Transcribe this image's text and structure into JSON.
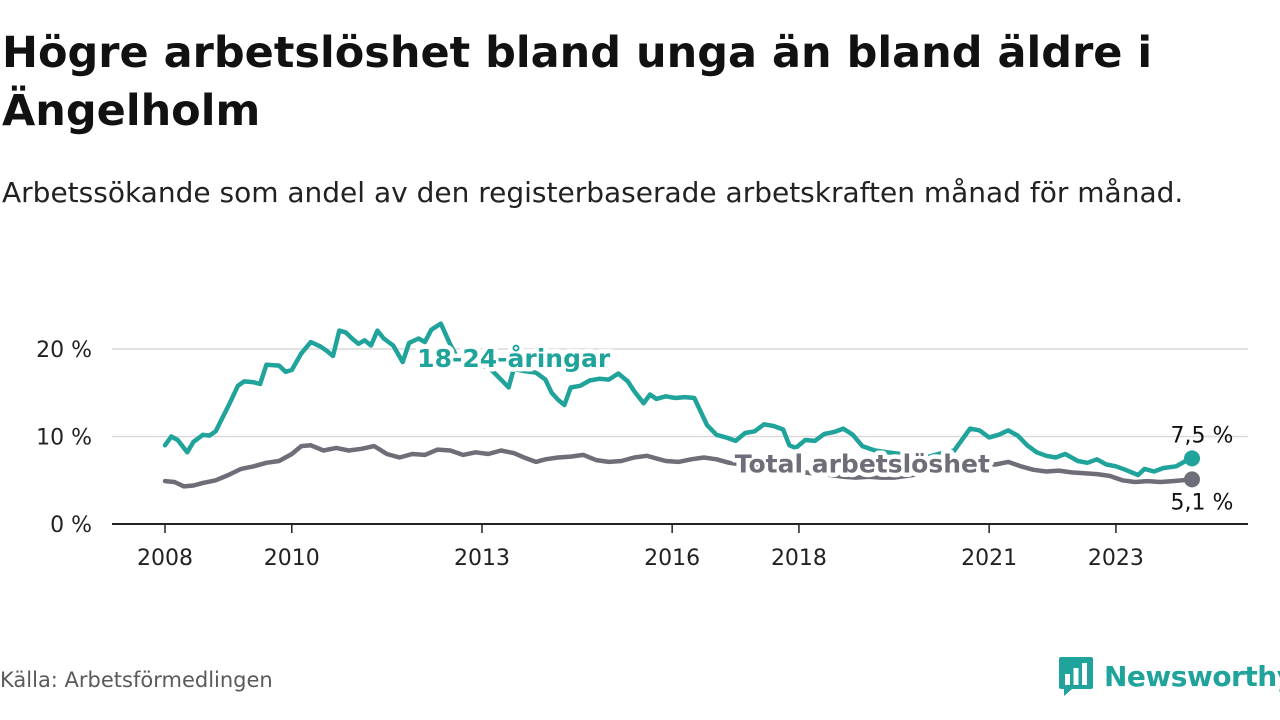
{
  "title": "Högre arbetslöshet bland unga än bland äldre i Ängelholm",
  "subtitle": "Arbetssökande som andel av den registerbaserade arbetskraften månad för månad.",
  "source": "Källa: Arbetsförmedlingen",
  "brand": {
    "name": "Newsworthy",
    "color": "#20a39b"
  },
  "chart_data": {
    "type": "line",
    "title": "Högre arbetslöshet bland unga än bland äldre i Ängelholm",
    "xlabel": "",
    "ylabel": "",
    "xlim": [
      2008.0,
      2024.5
    ],
    "ylim": [
      0,
      22
    ],
    "x_ticks": [
      2008,
      2010,
      2013,
      2016,
      2018,
      2021,
      2023
    ],
    "y_ticks": [
      {
        "value": 0,
        "label": "0 %"
      },
      {
        "value": 10,
        "label": "10 %"
      },
      {
        "value": 20,
        "label": "20 %"
      }
    ],
    "grid": true,
    "series": [
      {
        "name": "18-24-åringar",
        "color": "#20a39b",
        "end_label": "7,5 %",
        "points": [
          [
            2008.0,
            9.0
          ],
          [
            2008.1,
            10.0
          ],
          [
            2008.2,
            9.6
          ],
          [
            2008.35,
            8.2
          ],
          [
            2008.45,
            9.4
          ],
          [
            2008.6,
            10.2
          ],
          [
            2008.7,
            10.1
          ],
          [
            2008.8,
            10.6
          ],
          [
            2009.0,
            13.5
          ],
          [
            2009.15,
            15.8
          ],
          [
            2009.25,
            16.3
          ],
          [
            2009.4,
            16.2
          ],
          [
            2009.5,
            16.0
          ],
          [
            2009.6,
            18.2
          ],
          [
            2009.8,
            18.1
          ],
          [
            2009.9,
            17.4
          ],
          [
            2010.0,
            17.6
          ],
          [
            2010.15,
            19.5
          ],
          [
            2010.3,
            20.8
          ],
          [
            2010.45,
            20.3
          ],
          [
            2010.55,
            19.8
          ],
          [
            2010.65,
            19.2
          ],
          [
            2010.75,
            22.1
          ],
          [
            2010.85,
            21.9
          ],
          [
            2010.95,
            21.2
          ],
          [
            2011.05,
            20.6
          ],
          [
            2011.15,
            21.0
          ],
          [
            2011.25,
            20.4
          ],
          [
            2011.35,
            22.1
          ],
          [
            2011.45,
            21.2
          ],
          [
            2011.6,
            20.4
          ],
          [
            2011.75,
            18.5
          ],
          [
            2011.85,
            20.7
          ],
          [
            2012.0,
            21.2
          ],
          [
            2012.1,
            20.8
          ],
          [
            2012.2,
            22.2
          ],
          [
            2012.35,
            22.9
          ],
          [
            2012.5,
            20.5
          ],
          [
            2012.65,
            18.5
          ],
          [
            2012.8,
            17.8
          ],
          [
            2013.0,
            18.2
          ],
          [
            2013.15,
            17.6
          ],
          [
            2013.3,
            16.5
          ],
          [
            2013.42,
            15.6
          ],
          [
            2013.5,
            17.7
          ],
          [
            2013.65,
            17.5
          ],
          [
            2013.85,
            17.3
          ],
          [
            2014.0,
            16.5
          ],
          [
            2014.1,
            15.0
          ],
          [
            2014.2,
            14.2
          ],
          [
            2014.3,
            13.6
          ],
          [
            2014.4,
            15.6
          ],
          [
            2014.55,
            15.8
          ],
          [
            2014.7,
            16.4
          ],
          [
            2014.85,
            16.6
          ],
          [
            2015.0,
            16.5
          ],
          [
            2015.15,
            17.2
          ],
          [
            2015.3,
            16.3
          ],
          [
            2015.4,
            15.2
          ],
          [
            2015.55,
            13.8
          ],
          [
            2015.65,
            14.8
          ],
          [
            2015.75,
            14.3
          ],
          [
            2015.9,
            14.6
          ],
          [
            2016.05,
            14.4
          ],
          [
            2016.2,
            14.5
          ],
          [
            2016.35,
            14.4
          ],
          [
            2016.55,
            11.3
          ],
          [
            2016.7,
            10.2
          ],
          [
            2016.85,
            9.9
          ],
          [
            2017.0,
            9.5
          ],
          [
            2017.15,
            10.4
          ],
          [
            2017.3,
            10.6
          ],
          [
            2017.45,
            11.4
          ],
          [
            2017.6,
            11.2
          ],
          [
            2017.75,
            10.8
          ],
          [
            2017.85,
            9.0
          ],
          [
            2017.95,
            8.7
          ],
          [
            2018.1,
            9.6
          ],
          [
            2018.25,
            9.5
          ],
          [
            2018.4,
            10.3
          ],
          [
            2018.55,
            10.5
          ],
          [
            2018.7,
            10.9
          ],
          [
            2018.85,
            10.2
          ],
          [
            2019.0,
            8.9
          ],
          [
            2019.2,
            8.4
          ],
          [
            2019.4,
            8.2
          ],
          [
            2019.6,
            8.0
          ],
          [
            2019.8,
            7.8
          ],
          [
            2020.0,
            7.6
          ],
          [
            2020.2,
            8.0
          ],
          [
            2020.45,
            8.4
          ],
          [
            2020.7,
            10.9
          ],
          [
            2020.85,
            10.7
          ],
          [
            2021.0,
            9.9
          ],
          [
            2021.15,
            10.2
          ],
          [
            2021.3,
            10.7
          ],
          [
            2021.45,
            10.1
          ],
          [
            2021.6,
            9.0
          ],
          [
            2021.75,
            8.2
          ],
          [
            2021.9,
            7.8
          ],
          [
            2022.05,
            7.6
          ],
          [
            2022.2,
            8.0
          ],
          [
            2022.4,
            7.2
          ],
          [
            2022.55,
            7.0
          ],
          [
            2022.7,
            7.4
          ],
          [
            2022.85,
            6.8
          ],
          [
            2023.0,
            6.6
          ],
          [
            2023.15,
            6.2
          ],
          [
            2023.25,
            5.9
          ],
          [
            2023.35,
            5.6
          ],
          [
            2023.45,
            6.3
          ],
          [
            2023.6,
            6.0
          ],
          [
            2023.75,
            6.4
          ],
          [
            2023.95,
            6.6
          ],
          [
            2024.1,
            7.2
          ],
          [
            2024.2,
            7.5
          ]
        ]
      },
      {
        "name": "Total arbetslöshet",
        "color": "#6e6e78",
        "end_label": "5,1 %",
        "points": [
          [
            2008.0,
            4.9
          ],
          [
            2008.15,
            4.8
          ],
          [
            2008.3,
            4.3
          ],
          [
            2008.45,
            4.4
          ],
          [
            2008.6,
            4.7
          ],
          [
            2008.8,
            5.0
          ],
          [
            2009.0,
            5.6
          ],
          [
            2009.2,
            6.3
          ],
          [
            2009.4,
            6.6
          ],
          [
            2009.6,
            7.0
          ],
          [
            2009.8,
            7.2
          ],
          [
            2010.0,
            8.0
          ],
          [
            2010.15,
            8.9
          ],
          [
            2010.3,
            9.0
          ],
          [
            2010.5,
            8.4
          ],
          [
            2010.7,
            8.7
          ],
          [
            2010.9,
            8.4
          ],
          [
            2011.1,
            8.6
          ],
          [
            2011.3,
            8.9
          ],
          [
            2011.5,
            8.0
          ],
          [
            2011.7,
            7.6
          ],
          [
            2011.9,
            8.0
          ],
          [
            2012.1,
            7.9
          ],
          [
            2012.3,
            8.5
          ],
          [
            2012.5,
            8.4
          ],
          [
            2012.7,
            7.9
          ],
          [
            2012.9,
            8.2
          ],
          [
            2013.1,
            8.0
          ],
          [
            2013.3,
            8.4
          ],
          [
            2013.5,
            8.1
          ],
          [
            2013.7,
            7.5
          ],
          [
            2013.85,
            7.1
          ],
          [
            2014.0,
            7.4
          ],
          [
            2014.2,
            7.6
          ],
          [
            2014.4,
            7.7
          ],
          [
            2014.6,
            7.9
          ],
          [
            2014.8,
            7.3
          ],
          [
            2015.0,
            7.1
          ],
          [
            2015.2,
            7.2
          ],
          [
            2015.4,
            7.6
          ],
          [
            2015.6,
            7.8
          ],
          [
            2015.75,
            7.5
          ],
          [
            2015.9,
            7.2
          ],
          [
            2016.1,
            7.1
          ],
          [
            2016.3,
            7.4
          ],
          [
            2016.5,
            7.6
          ],
          [
            2016.7,
            7.4
          ],
          [
            2016.9,
            7.0
          ],
          [
            2017.1,
            6.8
          ],
          [
            2017.3,
            6.6
          ],
          [
            2017.5,
            6.4
          ],
          [
            2017.7,
            6.2
          ],
          [
            2017.9,
            6.0
          ],
          [
            2018.1,
            5.9
          ],
          [
            2018.3,
            5.7
          ],
          [
            2018.5,
            5.6
          ],
          [
            2018.7,
            5.4
          ],
          [
            2018.9,
            5.3
          ],
          [
            2019.1,
            5.4
          ],
          [
            2019.3,
            5.3
          ],
          [
            2019.5,
            5.3
          ],
          [
            2019.7,
            5.5
          ],
          [
            2019.9,
            5.7
          ],
          [
            2020.1,
            5.9
          ],
          [
            2020.3,
            6.2
          ],
          [
            2020.5,
            6.8
          ],
          [
            2020.7,
            7.3
          ],
          [
            2020.9,
            6.9
          ],
          [
            2021.1,
            6.8
          ],
          [
            2021.3,
            7.1
          ],
          [
            2021.5,
            6.6
          ],
          [
            2021.7,
            6.2
          ],
          [
            2021.9,
            6.0
          ],
          [
            2022.1,
            6.1
          ],
          [
            2022.3,
            5.9
          ],
          [
            2022.5,
            5.8
          ],
          [
            2022.7,
            5.7
          ],
          [
            2022.9,
            5.5
          ],
          [
            2023.1,
            5.0
          ],
          [
            2023.3,
            4.8
          ],
          [
            2023.5,
            4.9
          ],
          [
            2023.7,
            4.8
          ],
          [
            2023.9,
            4.9
          ],
          [
            2024.05,
            5.0
          ],
          [
            2024.2,
            5.1
          ]
        ]
      }
    ],
    "annotations": [
      {
        "text": "18-24-åringar",
        "series": "18-24-åringar",
        "at_x": 2013.5,
        "at_y": 19.0
      },
      {
        "text": "Total arbetslöshet",
        "series": "Total arbetslöshet",
        "at_x": 2019.0,
        "at_y": 6.9
      }
    ]
  }
}
